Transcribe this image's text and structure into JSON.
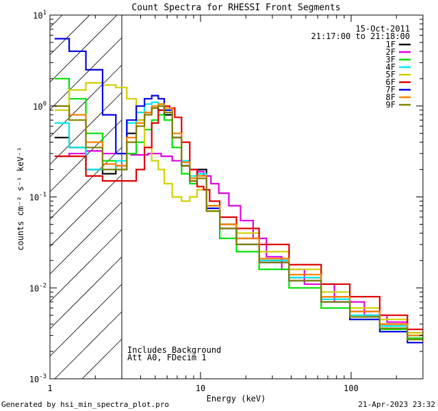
{
  "chart_data": {
    "type": "line",
    "title": "Count Spectra for RHESSI Front Segments",
    "xlabel": "Energy (keV)",
    "ylabel": "counts cm⁻² s⁻¹ keV⁻¹",
    "xscale": "log",
    "yscale": "log",
    "xlim": [
      1,
      300
    ],
    "ylim": [
      0.001,
      10
    ],
    "xticks": [
      {
        "value": 1,
        "label": "1"
      },
      {
        "value": 10,
        "label": "10"
      },
      {
        "value": 100,
        "label": "100"
      }
    ],
    "yticks": [
      {
        "value": 0.001,
        "base": "10",
        "exp": "-3"
      },
      {
        "value": 0.01,
        "base": "10",
        "exp": "-2"
      },
      {
        "value": 0.1,
        "base": "10",
        "exp": "-1"
      },
      {
        "value": 1,
        "base": "10",
        "exp": "0"
      },
      {
        "value": 10,
        "base": "10",
        "exp": "1"
      }
    ],
    "hatched_region": {
      "x_from": 1,
      "x_to": 3
    },
    "date": "15-Oct-2011",
    "time_range": "21:17:00 to 21:18:00",
    "annotations": [
      "Includes Background",
      "Att A0, FDecim 1"
    ],
    "legend_position": "top-right",
    "series": [
      {
        "name": "1F",
        "color": "#000000",
        "points": [
          [
            1.2,
            0.45
          ],
          [
            1.5,
            0.35
          ],
          [
            2.0,
            0.2
          ],
          [
            2.5,
            0.18
          ],
          [
            3.0,
            0.22
          ],
          [
            3.5,
            0.5
          ],
          [
            4.0,
            0.7
          ],
          [
            4.5,
            0.85
          ],
          [
            5.0,
            0.95
          ],
          [
            5.5,
            0.9
          ],
          [
            6.0,
            0.8
          ],
          [
            7.0,
            0.45
          ],
          [
            8.0,
            0.22
          ],
          [
            9.0,
            0.16
          ],
          [
            10.0,
            0.2
          ],
          [
            12.0,
            0.08
          ],
          [
            15.0,
            0.05
          ],
          [
            20.0,
            0.035
          ],
          [
            30.0,
            0.02
          ],
          [
            50.0,
            0.013
          ],
          [
            80.0,
            0.008
          ],
          [
            120.0,
            0.0055
          ],
          [
            200.0,
            0.004
          ],
          [
            280.0,
            0.003
          ]
        ]
      },
      {
        "name": "2F",
        "color": "#e000e0",
        "points": [
          [
            1.2,
            0.28
          ],
          [
            1.5,
            0.3
          ],
          [
            2.0,
            0.32
          ],
          [
            2.5,
            0.3
          ],
          [
            3.0,
            0.3
          ],
          [
            4.0,
            0.29
          ],
          [
            5.0,
            0.3
          ],
          [
            6.0,
            0.28
          ],
          [
            7.0,
            0.25
          ],
          [
            8.0,
            0.22
          ],
          [
            9.0,
            0.2
          ],
          [
            10.0,
            0.19
          ],
          [
            11.0,
            0.17
          ],
          [
            12.5,
            0.14
          ],
          [
            14.0,
            0.11
          ],
          [
            17.0,
            0.08
          ],
          [
            20.0,
            0.055
          ],
          [
            25.0,
            0.035
          ],
          [
            30.0,
            0.022
          ],
          [
            40.0,
            0.016
          ],
          [
            60.0,
            0.011
          ],
          [
            100.0,
            0.007
          ],
          [
            150.0,
            0.005
          ],
          [
            200.0,
            0.0042
          ],
          [
            280.0,
            0.0032
          ]
        ]
      },
      {
        "name": "3F",
        "color": "#00e000",
        "points": [
          [
            1.2,
            2.0
          ],
          [
            1.5,
            1.2
          ],
          [
            2.0,
            0.5
          ],
          [
            2.5,
            0.25
          ],
          [
            3.0,
            0.2
          ],
          [
            3.5,
            0.3
          ],
          [
            4.0,
            0.4
          ],
          [
            4.5,
            0.55
          ],
          [
            5.0,
            0.7
          ],
          [
            5.5,
            0.8
          ],
          [
            6.0,
            0.7
          ],
          [
            7.0,
            0.35
          ],
          [
            8.0,
            0.18
          ],
          [
            9.0,
            0.14
          ],
          [
            10.0,
            0.17
          ],
          [
            12.0,
            0.07
          ],
          [
            15.0,
            0.035
          ],
          [
            20.0,
            0.025
          ],
          [
            30.0,
            0.016
          ],
          [
            50.0,
            0.01
          ],
          [
            80.0,
            0.006
          ],
          [
            120.0,
            0.0045
          ],
          [
            200.0,
            0.0035
          ],
          [
            280.0,
            0.0028
          ]
        ]
      },
      {
        "name": "4F",
        "color": "#00e8e8",
        "points": [
          [
            1.2,
            0.65
          ],
          [
            1.5,
            0.35
          ],
          [
            2.0,
            0.2
          ],
          [
            2.5,
            0.2
          ],
          [
            3.0,
            0.25
          ],
          [
            3.5,
            0.65
          ],
          [
            4.0,
            0.85
          ],
          [
            4.5,
            1.05
          ],
          [
            5.0,
            1.1
          ],
          [
            5.5,
            1.0
          ],
          [
            6.0,
            0.9
          ],
          [
            7.0,
            0.5
          ],
          [
            8.0,
            0.25
          ],
          [
            9.0,
            0.17
          ],
          [
            10.0,
            0.18
          ],
          [
            12.0,
            0.08
          ],
          [
            15.0,
            0.05
          ],
          [
            20.0,
            0.035
          ],
          [
            30.0,
            0.02
          ],
          [
            50.0,
            0.013
          ],
          [
            80.0,
            0.0075
          ],
          [
            120.0,
            0.005
          ],
          [
            200.0,
            0.0038
          ],
          [
            280.0,
            0.003
          ]
        ]
      },
      {
        "name": "5F",
        "color": "#d0d000",
        "points": [
          [
            1.2,
            0.9
          ],
          [
            1.5,
            1.5
          ],
          [
            2.0,
            1.8
          ],
          [
            2.5,
            1.7
          ],
          [
            3.0,
            1.6
          ],
          [
            3.5,
            1.2
          ],
          [
            4.0,
            0.7
          ],
          [
            4.5,
            0.35
          ],
          [
            5.0,
            0.25
          ],
          [
            5.5,
            0.2
          ],
          [
            6.0,
            0.14
          ],
          [
            7.0,
            0.1
          ],
          [
            8.0,
            0.09
          ],
          [
            9.0,
            0.1
          ],
          [
            10.0,
            0.12
          ],
          [
            12.0,
            0.07
          ],
          [
            15.0,
            0.05
          ],
          [
            20.0,
            0.04
          ],
          [
            30.0,
            0.025
          ],
          [
            50.0,
            0.016
          ],
          [
            80.0,
            0.009
          ],
          [
            120.0,
            0.006
          ],
          [
            200.0,
            0.0045
          ],
          [
            280.0,
            0.0032
          ]
        ]
      },
      {
        "name": "6F",
        "color": "#e00000",
        "points": [
          [
            1.2,
            0.28
          ],
          [
            1.5,
            0.28
          ],
          [
            2.0,
            0.17
          ],
          [
            2.5,
            0.15
          ],
          [
            3.0,
            0.15
          ],
          [
            3.5,
            0.15
          ],
          [
            4.0,
            0.2
          ],
          [
            4.5,
            0.35
          ],
          [
            5.0,
            0.65
          ],
          [
            5.5,
            0.9
          ],
          [
            6.0,
            1.0
          ],
          [
            6.5,
            0.95
          ],
          [
            7.0,
            0.75
          ],
          [
            8.0,
            0.4
          ],
          [
            9.0,
            0.2
          ],
          [
            10.0,
            0.13
          ],
          [
            11.0,
            0.12
          ],
          [
            12.0,
            0.09
          ],
          [
            15.0,
            0.06
          ],
          [
            20.0,
            0.045
          ],
          [
            30.0,
            0.03
          ],
          [
            50.0,
            0.018
          ],
          [
            80.0,
            0.011
          ],
          [
            120.0,
            0.008
          ],
          [
            200.0,
            0.005
          ],
          [
            280.0,
            0.0035
          ]
        ]
      },
      {
        "name": "7F",
        "color": "#0000e0",
        "points": [
          [
            1.2,
            5.5
          ],
          [
            1.5,
            4.0
          ],
          [
            2.0,
            2.5
          ],
          [
            2.5,
            0.8
          ],
          [
            3.0,
            0.3
          ],
          [
            3.5,
            0.7
          ],
          [
            4.0,
            1.0
          ],
          [
            4.5,
            1.2
          ],
          [
            5.0,
            1.3
          ],
          [
            5.5,
            1.2
          ],
          [
            6.0,
            0.9
          ],
          [
            7.0,
            0.45
          ],
          [
            8.0,
            0.22
          ],
          [
            9.0,
            0.15
          ],
          [
            10.0,
            0.17
          ],
          [
            12.0,
            0.075
          ],
          [
            15.0,
            0.045
          ],
          [
            20.0,
            0.03
          ],
          [
            30.0,
            0.019
          ],
          [
            50.0,
            0.012
          ],
          [
            80.0,
            0.007
          ],
          [
            120.0,
            0.0045
          ],
          [
            200.0,
            0.0033
          ],
          [
            280.0,
            0.0025
          ]
        ]
      },
      {
        "name": "8F",
        "color": "#ff8000",
        "points": [
          [
            1.2,
            1.0
          ],
          [
            1.5,
            0.8
          ],
          [
            2.0,
            0.4
          ],
          [
            2.5,
            0.23
          ],
          [
            3.0,
            0.22
          ],
          [
            3.5,
            0.45
          ],
          [
            4.0,
            0.65
          ],
          [
            4.5,
            0.85
          ],
          [
            5.0,
            1.0
          ],
          [
            5.5,
            1.05
          ],
          [
            6.0,
            0.95
          ],
          [
            7.0,
            0.5
          ],
          [
            8.0,
            0.24
          ],
          [
            9.0,
            0.16
          ],
          [
            10.0,
            0.17
          ],
          [
            12.0,
            0.08
          ],
          [
            15.0,
            0.05
          ],
          [
            20.0,
            0.035
          ],
          [
            30.0,
            0.021
          ],
          [
            50.0,
            0.014
          ],
          [
            80.0,
            0.008
          ],
          [
            120.0,
            0.0055
          ],
          [
            200.0,
            0.004
          ],
          [
            280.0,
            0.003
          ]
        ]
      },
      {
        "name": "9F",
        "color": "#808000",
        "points": [
          [
            1.2,
            1.0
          ],
          [
            1.5,
            0.7
          ],
          [
            2.0,
            0.35
          ],
          [
            2.5,
            0.2
          ],
          [
            3.0,
            0.2
          ],
          [
            3.5,
            0.4
          ],
          [
            4.0,
            0.6
          ],
          [
            4.5,
            0.8
          ],
          [
            5.0,
            0.95
          ],
          [
            5.5,
            1.0
          ],
          [
            6.0,
            0.85
          ],
          [
            7.0,
            0.45
          ],
          [
            8.0,
            0.22
          ],
          [
            9.0,
            0.15
          ],
          [
            10.0,
            0.16
          ],
          [
            12.0,
            0.07
          ],
          [
            15.0,
            0.045
          ],
          [
            20.0,
            0.03
          ],
          [
            30.0,
            0.019
          ],
          [
            50.0,
            0.012
          ],
          [
            80.0,
            0.007
          ],
          [
            120.0,
            0.0048
          ],
          [
            200.0,
            0.0036
          ],
          [
            280.0,
            0.0027
          ]
        ]
      }
    ]
  },
  "footer": {
    "generated_by": "Generated by hsi_min_spectra_plot.pro",
    "timestamp": "21-Apr-2023 23:32"
  }
}
